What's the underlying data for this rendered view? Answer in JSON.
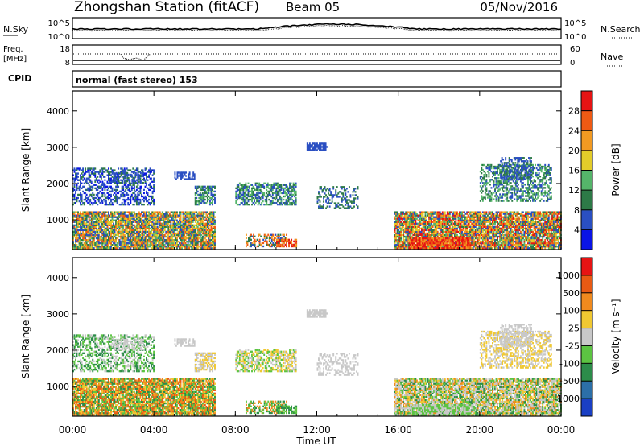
{
  "header": {
    "station": "Zhongshan Station (fitACF)",
    "beam": "Beam 05",
    "date": "05/Nov/2016"
  },
  "noise_panel": {
    "left_label": "N.Sky",
    "right_label": "N.Search",
    "left_ticks": [
      "10^5",
      "10^0"
    ],
    "right_ticks": [
      "10^5",
      "10^0"
    ]
  },
  "freq_panel": {
    "left_label_1": "Freq.",
    "left_label_2": "[MHz]",
    "right_label": "Nave",
    "left_ticks": [
      "18",
      "8"
    ],
    "right_ticks": [
      "60",
      "0"
    ]
  },
  "cpid": {
    "label": "CPID",
    "text": "normal (fast stereo) 153"
  },
  "chart_data": [
    {
      "type": "heatmap",
      "name": "power",
      "ylabel": "Slant Range [km]",
      "xlabel": "Time UT",
      "x_range_hours": [
        0,
        24
      ],
      "ylim_km": [
        180,
        4550
      ],
      "y_ticks": [
        1000,
        2000,
        3000,
        4000
      ],
      "x_ticks": [
        "00:00",
        "04:00",
        "08:00",
        "12:00",
        "16:00",
        "20:00",
        "00:00"
      ],
      "colorbar": {
        "label": "Power [dB]",
        "ticks": [
          "4",
          "8",
          "12",
          "16",
          "20",
          "24",
          "28"
        ],
        "colors": [
          "#0a14e6",
          "#2a4fc2",
          "#2d7a47",
          "#55b56a",
          "#e3cc2a",
          "#f29a22",
          "#ef5a14",
          "#e61414"
        ]
      }
    },
    {
      "type": "heatmap",
      "name": "velocity",
      "ylabel": "Slant Range [km]",
      "xlabel": "Time UT",
      "x_range_hours": [
        0,
        24
      ],
      "ylim_km": [
        180,
        4550
      ],
      "y_ticks": [
        1000,
        2000,
        3000,
        4000
      ],
      "x_ticks": [
        "00:00",
        "04:00",
        "08:00",
        "12:00",
        "16:00",
        "20:00",
        "00:00"
      ],
      "colorbar": {
        "label": "Velocity [m s⁻¹]",
        "ticks": [
          "1000",
          "500",
          "100",
          "25",
          "-25",
          "-100",
          "-500",
          "-1000"
        ],
        "colors": [
          "#1a3fc4",
          "#2c6fa8",
          "#2c8c4a",
          "#5cc442",
          "#c8c8c8",
          "#f0c832",
          "#f08a1e",
          "#e85a14",
          "#e61414"
        ]
      }
    }
  ],
  "x_axis": {
    "label": "Time UT",
    "ticks": [
      "00:00",
      "04:00",
      "08:00",
      "12:00",
      "16:00",
      "20:00",
      "00:00"
    ]
  }
}
